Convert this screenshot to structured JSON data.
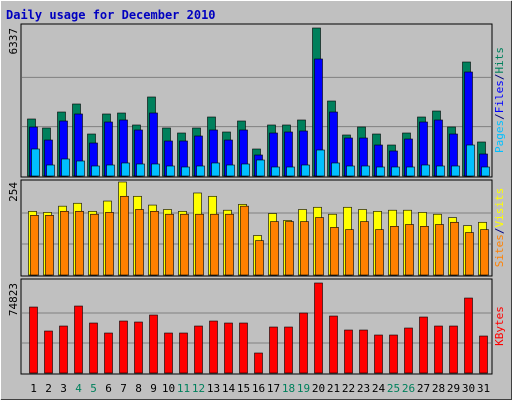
{
  "title": "Daily usage for December 2010",
  "chart_data": [
    {
      "type": "bar",
      "ylim": [
        0,
        6337
      ],
      "yticks": [
        6337
      ],
      "separator": "/",
      "series": [
        {
          "name": "Hits",
          "color": "#00805c",
          "values": [
            2441,
            2055,
            2740,
            3083,
            1798,
            2655,
            2697,
            2184,
            3383,
            2055,
            1841,
            2055,
            2526,
            1884,
            2355,
            1156,
            2184,
            2184,
            2398,
            6337,
            3211,
            1756,
            2098,
            1798,
            1327,
            1841,
            2526,
            2783,
            2098,
            4881,
            1456
          ]
        },
        {
          "name": "Files",
          "color": "#0000ff",
          "values": [
            2098,
            1541,
            2355,
            2655,
            1413,
            2312,
            2398,
            1970,
            2698,
            1499,
            1499,
            1713,
            1970,
            1541,
            1970,
            899,
            1841,
            1884,
            1927,
            5010,
            2740,
            1627,
            1627,
            1327,
            1071,
            1584,
            2312,
            2398,
            1798,
            4453,
            942
          ]
        },
        {
          "name": "Pages",
          "color": "#00c0ff",
          "values": [
            1156,
            471,
            728,
            642,
            428,
            471,
            557,
            514,
            514,
            428,
            385,
            428,
            557,
            471,
            514,
            685,
            385,
            385,
            471,
            1113,
            557,
            428,
            428,
            385,
            385,
            385,
            471,
            428,
            428,
            1327,
            385
          ]
        }
      ]
    },
    {
      "type": "bar",
      "ylim": [
        0,
        254
      ],
      "yticks": [
        254
      ],
      "separator": "/",
      "series": [
        {
          "name": "Visits",
          "color": "#ffff00",
          "values": [
            174,
            171,
            188,
            196,
            174,
            202,
            254,
            215,
            191,
            179,
            174,
            224,
            215,
            177,
            193,
            108,
            168,
            149,
            179,
            185,
            166,
            185,
            179,
            174,
            177,
            177,
            171,
            166,
            157,
            135,
            144
          ]
        },
        {
          "name": "Sites",
          "color": "#ff8000",
          "values": [
            163,
            163,
            174,
            174,
            166,
            171,
            215,
            179,
            174,
            166,
            166,
            166,
            166,
            166,
            188,
            94,
            146,
            146,
            146,
            157,
            130,
            124,
            146,
            124,
            133,
            138,
            133,
            138,
            144,
            116,
            124
          ]
        }
      ]
    },
    {
      "type": "bar",
      "ylim": [
        0,
        74823
      ],
      "yticks": [
        74823
      ],
      "categories": [
        "1",
        "2",
        "3",
        "4",
        "5",
        "6",
        "7",
        "8",
        "9",
        "10",
        "11",
        "12",
        "13",
        "14",
        "15",
        "16",
        "17",
        "18",
        "19",
        "20",
        "21",
        "22",
        "23",
        "24",
        "25",
        "26",
        "27",
        "28",
        "29",
        "30",
        "31"
      ],
      "category_colors": [
        "#000000",
        "#000000",
        "#000000",
        "#00805c",
        "#00805c",
        "#000000",
        "#000000",
        "#000000",
        "#000000",
        "#000000",
        "#00805c",
        "#00805c",
        "#000000",
        "#000000",
        "#000000",
        "#000000",
        "#000000",
        "#00805c",
        "#00805c",
        "#000000",
        "#000000",
        "#000000",
        "#000000",
        "#000000",
        "#00805c",
        "#00805c",
        "#000000",
        "#000000",
        "#000000",
        "#000000",
        "#000000"
      ],
      "series": [
        {
          "name": "KBytes",
          "color": "#ff0000",
          "values": [
            54846,
            34902,
            39057,
            55677,
            41550,
            33240,
            43212,
            42381,
            48198,
            33240,
            33240,
            39057,
            43212,
            41550,
            41550,
            16620,
            38226,
            38226,
            49860,
            74823,
            47367,
            35733,
            35733,
            31578,
            31578,
            37395,
            46536,
            39057,
            39057,
            62325,
            30747
          ]
        }
      ]
    }
  ]
}
